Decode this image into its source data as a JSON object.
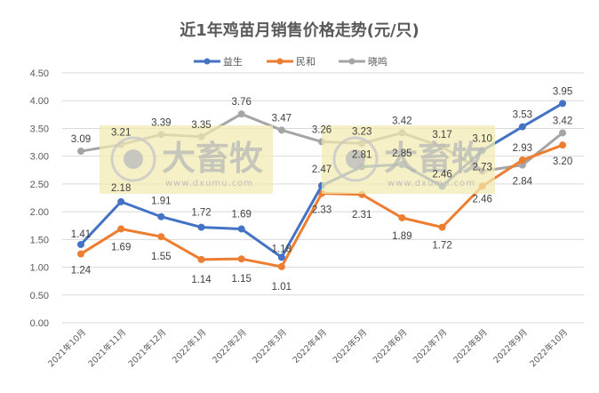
{
  "chart_data": {
    "type": "line",
    "title": "近1年鸡苗月销售价格走势(元/只)",
    "xlabel": "",
    "ylabel": "",
    "ylim": [
      0,
      4.5
    ],
    "yticks": [
      "0.00",
      "0.50",
      "1.00",
      "1.50",
      "2.00",
      "2.50",
      "3.00",
      "3.50",
      "4.00",
      "4.50"
    ],
    "grid": true,
    "legend_position": "top",
    "categories": [
      "2021年10月",
      "2021年11月",
      "2021年12月",
      "2022年1月",
      "2022年2月",
      "2022年3月",
      "2022年4月",
      "2022年5月",
      "2022年6月",
      "2022年7月",
      "2022年8月",
      "2022年9月",
      "2022年10月"
    ],
    "series": [
      {
        "name": "益生",
        "color": "#4472C4",
        "values": [
          1.41,
          2.18,
          1.91,
          1.72,
          1.69,
          1.18,
          2.47,
          2.81,
          2.85,
          2.46,
          3.1,
          3.53,
          3.95
        ]
      },
      {
        "name": "民和",
        "color": "#ED7D31",
        "values": [
          1.24,
          1.69,
          1.55,
          1.14,
          1.15,
          1.01,
          2.33,
          2.31,
          1.89,
          1.72,
          2.46,
          2.93,
          3.2
        ]
      },
      {
        "name": "晓鸣",
        "color": "#A5A5A5",
        "values": [
          3.09,
          3.21,
          3.39,
          3.35,
          3.76,
          3.47,
          3.26,
          3.23,
          3.42,
          3.17,
          2.73,
          2.84,
          3.42
        ]
      }
    ]
  },
  "watermark": {
    "text": "大畜牧",
    "url": "www.dxumu.com"
  }
}
